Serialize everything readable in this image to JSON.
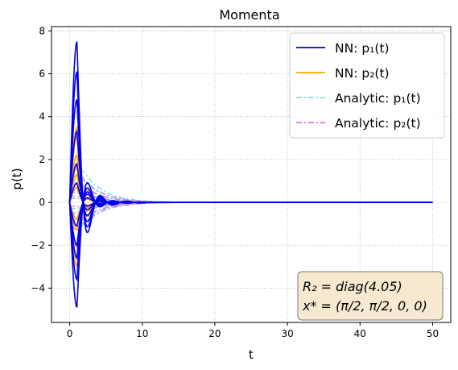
{
  "chart_data": {
    "type": "line",
    "title": "Momenta",
    "xlabel": "t",
    "ylabel": "p(t)",
    "xlim": [
      -2.5,
      52.5
    ],
    "ylim": [
      -5.6,
      8.2
    ],
    "xticks": [
      0,
      10,
      20,
      30,
      40,
      50
    ],
    "yticks": [
      -4,
      -2,
      0,
      2,
      4,
      6,
      8
    ],
    "grid": true,
    "legend_placement": "top-right",
    "legend": [
      {
        "label": "NN: p₁(t)",
        "color": "#0000ee",
        "style": "solid"
      },
      {
        "label": "NN: p₂(t)",
        "color": "#ffa500",
        "style": "solid"
      },
      {
        "label": "Analytic: p₁(t)",
        "color": "#7fdfdf",
        "style": "dashdot"
      },
      {
        "label": "Analytic: p₂(t)",
        "color": "#e070e0",
        "style": "dashdot"
      }
    ],
    "annotation": {
      "lines": [
        "R₂ = diag(4.05)",
        "x* = (π/2, π/2, 0, 0)"
      ],
      "placement": "bottom-right",
      "background": "#f7e9cf"
    },
    "nn_p1_amplitudes": [
      7.5,
      6.1,
      4.8,
      3.3,
      1.8,
      0.9,
      -1.1,
      -2.0,
      -2.6,
      -3.6,
      -4.9
    ],
    "nn_p2_amplitudes": [
      3.5,
      3.1,
      2.2,
      1.7,
      1.3,
      0.7,
      -0.8,
      -1.3,
      -2.1,
      -2.6,
      -3.0
    ],
    "analytic_p1_initial": [
      1.8,
      1.4,
      1.0,
      0.6,
      0.3,
      -0.3,
      -0.6,
      -1.0,
      -1.3
    ],
    "analytic_p2_initial": [
      1.3,
      0.9,
      0.5,
      0.2,
      -0.2,
      -0.5,
      -0.9,
      -1.2
    ]
  }
}
